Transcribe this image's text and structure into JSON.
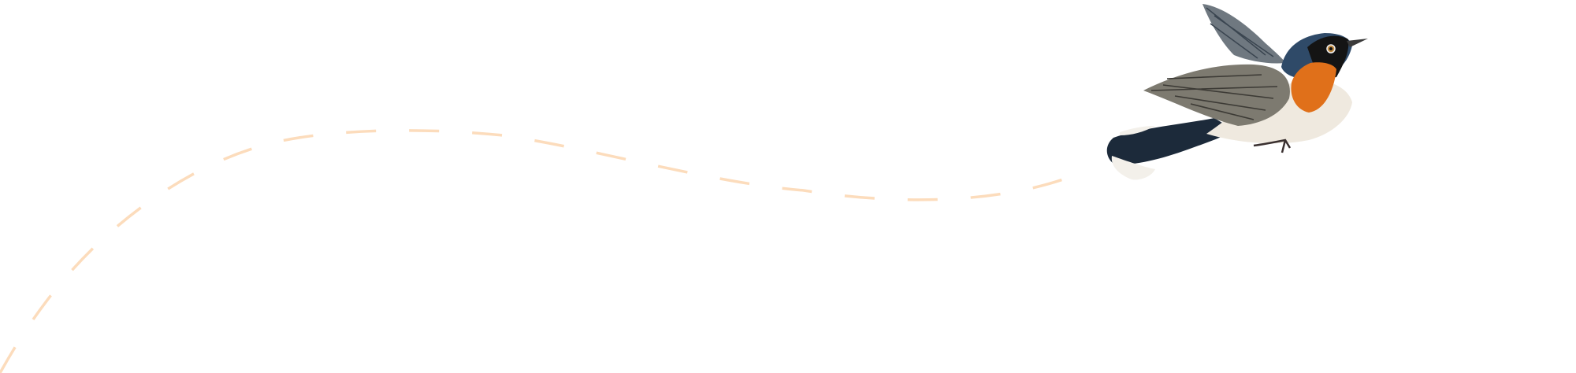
{
  "scene": {
    "background": "#ffffff",
    "flight_path_color": "#fcdcbc",
    "bird": {
      "icon": "flycatcher-bird-illustration",
      "colors": {
        "head": "#2f4a68",
        "throat": "#e0701a",
        "belly": "#efe9df",
        "wing": "#7d7a70",
        "tail": "#1c2a3a"
      }
    }
  }
}
